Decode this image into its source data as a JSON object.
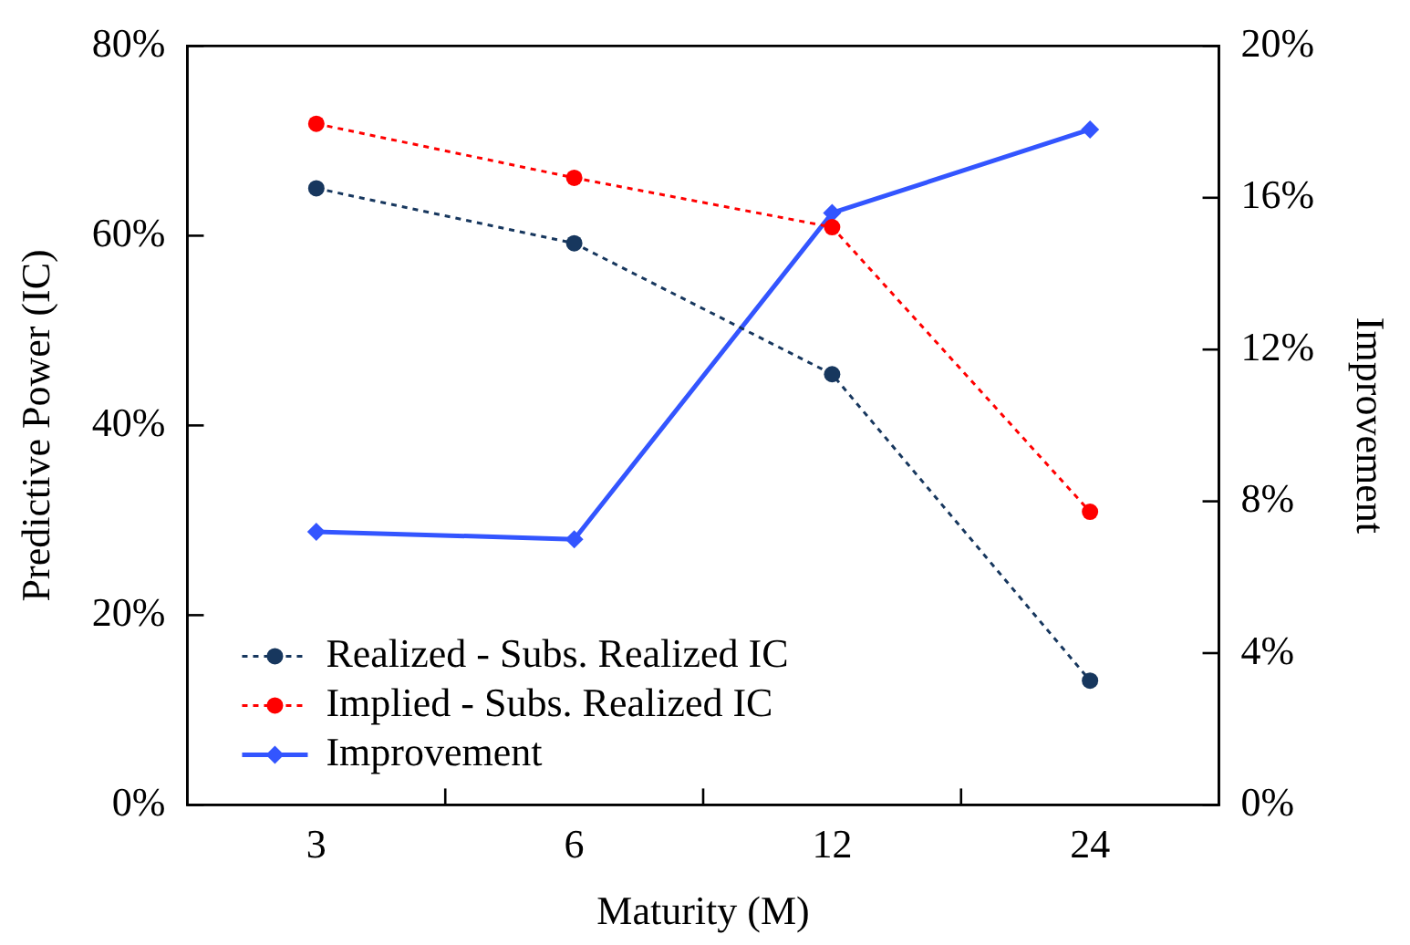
{
  "chart_data": {
    "type": "line",
    "xlabel": "Maturity (M)",
    "ylabel": "Predictive Power (IC)",
    "y2label": "Improvement",
    "categories": [
      "3",
      "6",
      "12",
      "24"
    ],
    "series": [
      {
        "name": "Realized - Subs. Realized IC",
        "color": "#17375e",
        "values": [
          65,
          59.2,
          45.4,
          13.1
        ],
        "line_style": "dotted",
        "marker": "circle"
      },
      {
        "name": "Implied - Subs. Realized IC",
        "color": "#ff0000",
        "values": [
          71.8,
          66.1,
          60.9,
          30.9
        ],
        "line_style": "dotted",
        "marker": "circle"
      },
      {
        "name": "Improvement",
        "color": "#3355ff",
        "values": [
          7.2,
          7.0,
          15.6,
          17.8
        ],
        "line_style": "solid",
        "marker": "diamond",
        "axis": "y2"
      }
    ],
    "ylim": [
      0,
      80
    ],
    "yticks": [
      {
        "value": 0,
        "label": "0%"
      },
      {
        "value": 20,
        "label": "20%"
      },
      {
        "value": 40,
        "label": "40%"
      },
      {
        "value": 60,
        "label": "60%"
      },
      {
        "value": 80,
        "label": "80%"
      }
    ],
    "y2lim": [
      0,
      20
    ],
    "y2ticks": [
      {
        "value": 0,
        "label": "0%"
      },
      {
        "value": 4,
        "label": "4%"
      },
      {
        "value": 8,
        "label": "8%"
      },
      {
        "value": 12,
        "label": "12%"
      },
      {
        "value": 16,
        "label": "16%"
      },
      {
        "value": 20,
        "label": "20%"
      }
    ],
    "grid": false,
    "legend": "bottom left"
  }
}
